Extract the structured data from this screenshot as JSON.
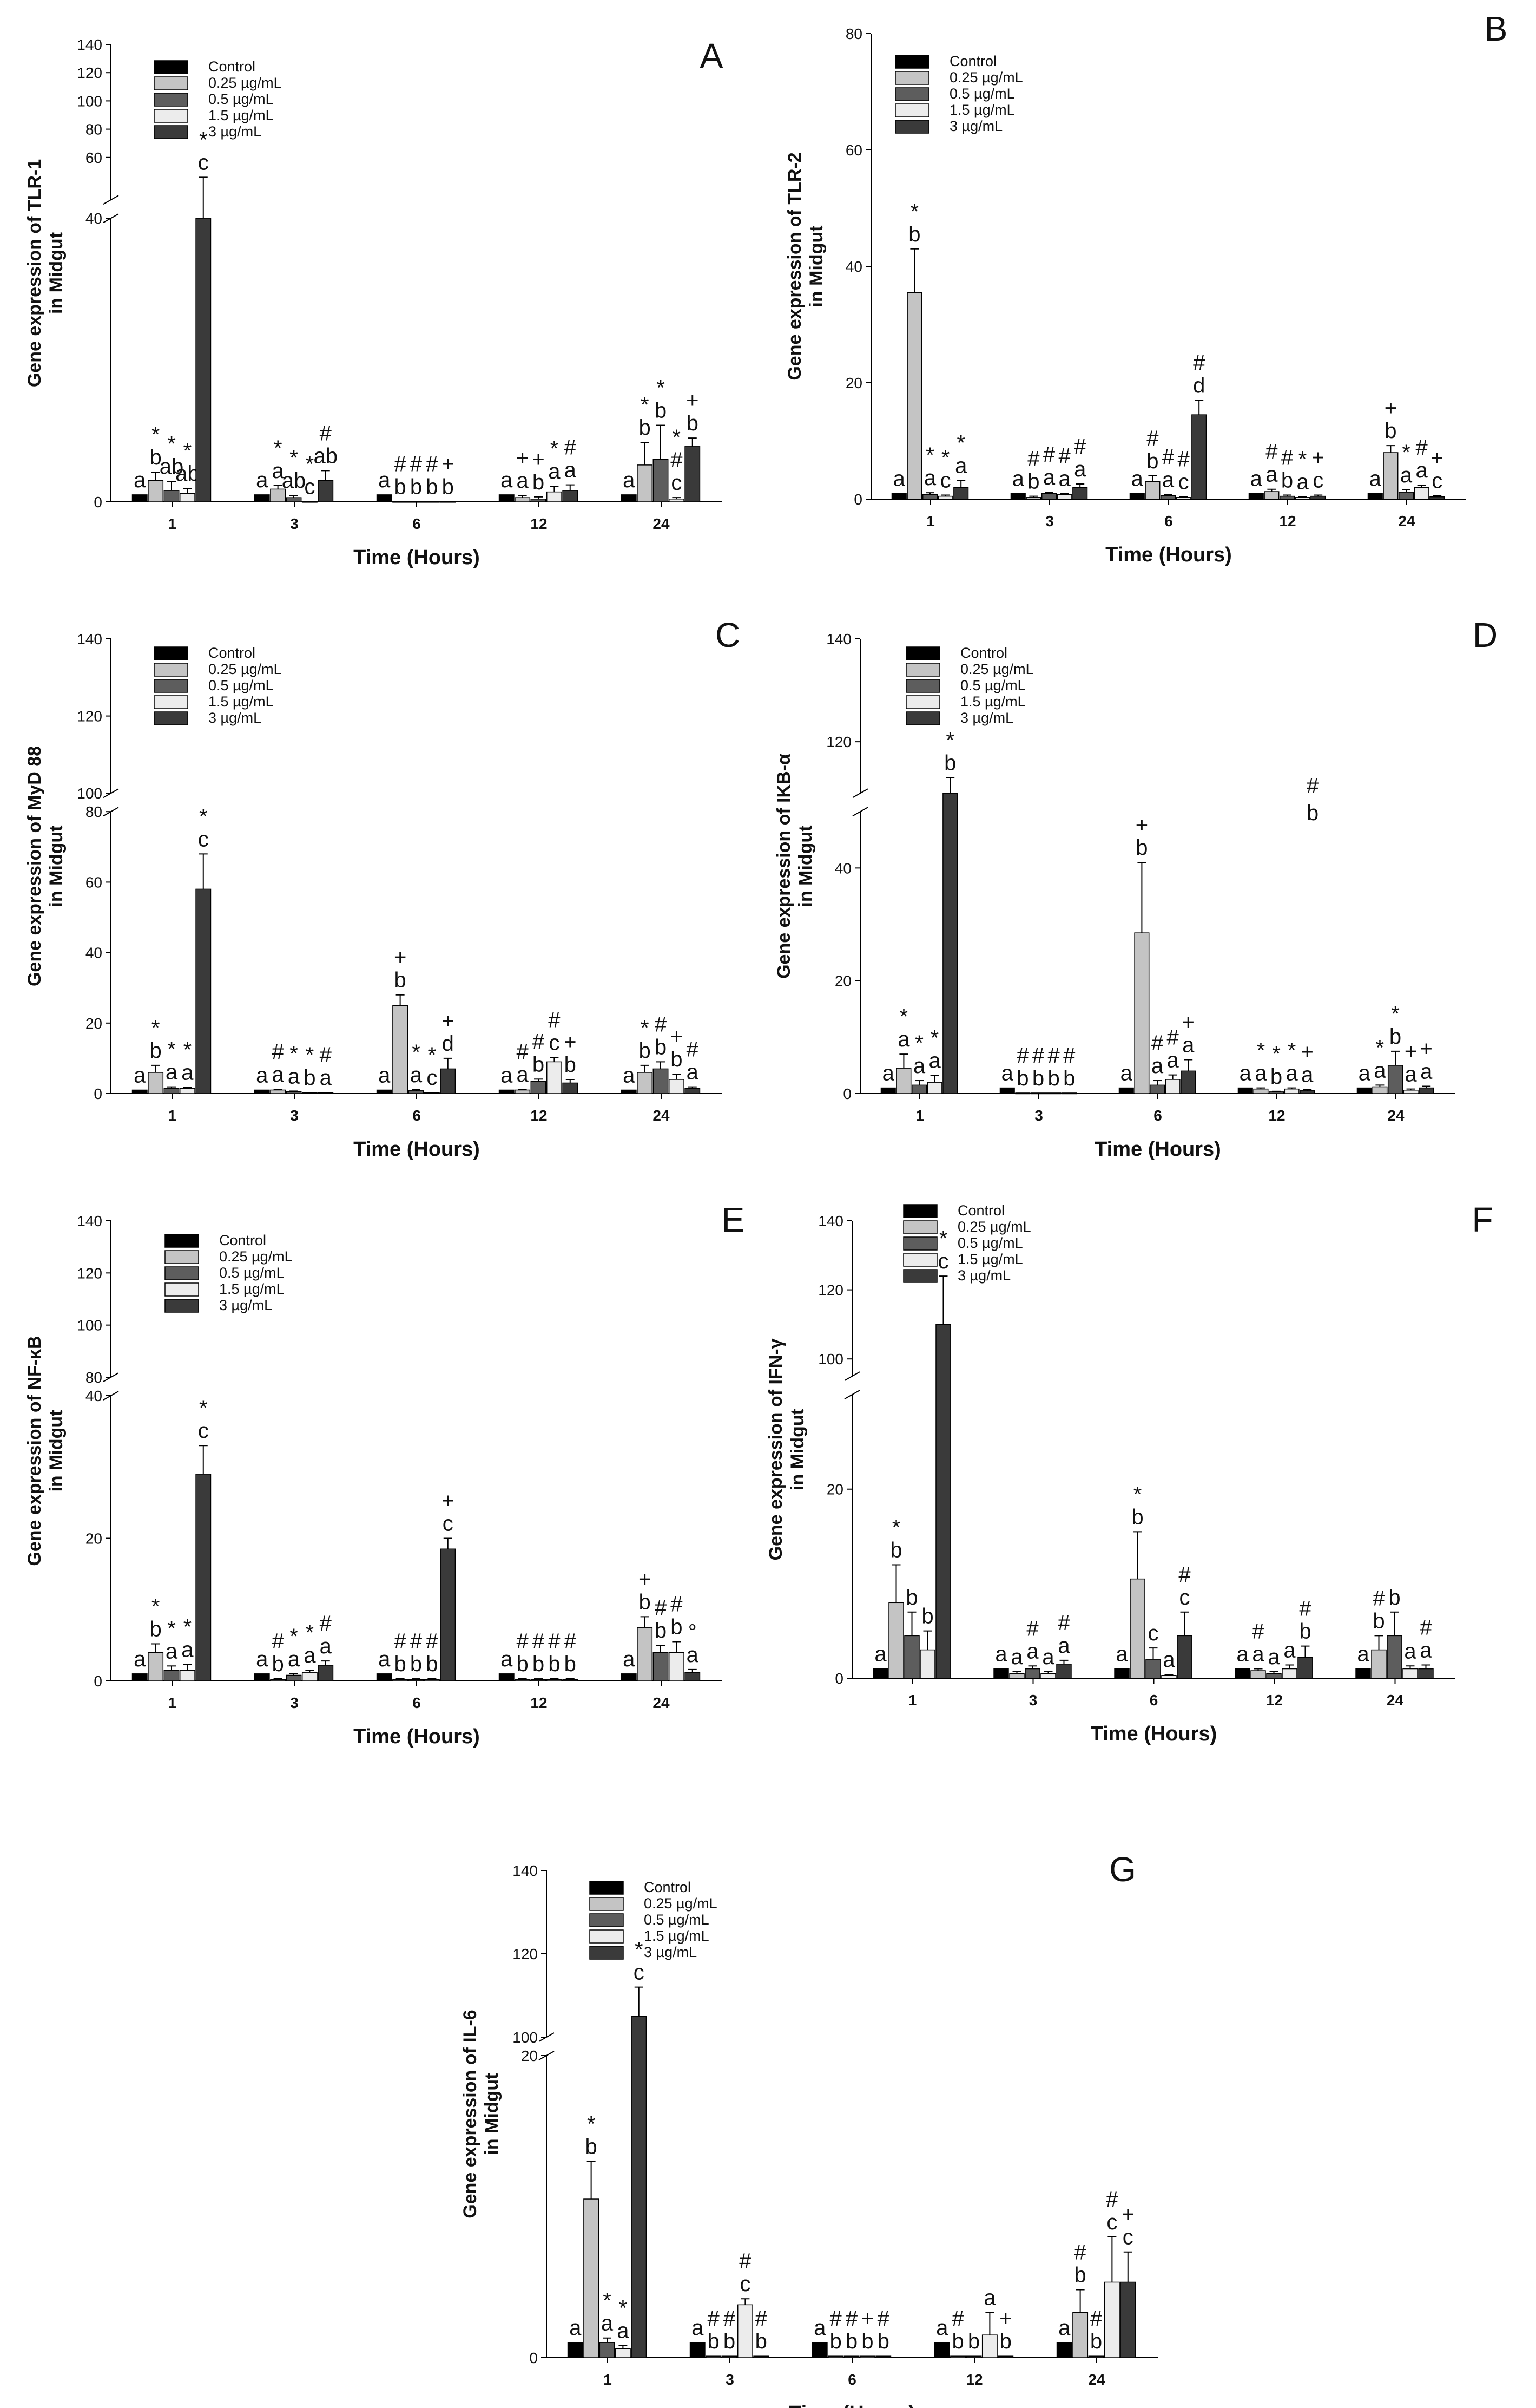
{
  "colors": {
    "Control": "#000000",
    "0.25 µg/mL": "#c4c4c4",
    "0.5 µg/mL": "#5d5d5d",
    "1.5 µg/mL": "#ececec",
    "3 µg/mL": "#3a3a3a"
  },
  "chart_data": [
    {
      "id": "A",
      "type": "bar",
      "panel": "A",
      "ylabel_line1": "Gene expression of TLR-1",
      "ylabel_line2": "in Midgut",
      "xlabel": "Time (Hours)",
      "categories": [
        "1",
        "3",
        "6",
        "12",
        "24"
      ],
      "legend": [
        "Control",
        "0.25 µg/mL",
        "0.5 µg/mL",
        "1.5 µg/mL",
        "3 µg/mL"
      ],
      "break": {
        "lower_max": 40,
        "upper_min": 30,
        "upper_max": 140
      },
      "yticks": [
        0,
        40,
        60,
        80,
        100,
        120,
        140
      ],
      "series": [
        {
          "name": "Control",
          "values": [
            1,
            1,
            1,
            1,
            1
          ],
          "errors": [
            0,
            0,
            0,
            0,
            0
          ]
        },
        {
          "name": "0.25 µg/mL",
          "values": [
            3,
            1.8,
            0.05,
            0.6,
            5.2
          ],
          "errors": [
            1.2,
            0.5,
            0,
            0.3,
            3.2
          ]
        },
        {
          "name": "0.5 µg/mL",
          "values": [
            1.6,
            0.6,
            0.05,
            0.4,
            6
          ],
          "errors": [
            1.3,
            0.3,
            0,
            0.3,
            4.8
          ]
        },
        {
          "name": "1.5 µg/mL",
          "values": [
            1.2,
            0.05,
            0.05,
            1.4,
            0.4
          ],
          "errors": [
            0.7,
            0,
            0,
            0.8,
            0.2
          ]
        },
        {
          "name": "3 µg/mL",
          "values": [
            40,
            3,
            0.05,
            1.6,
            7.8
          ],
          "errors": [
            6,
            1.4,
            0,
            0.8,
            1.2
          ]
        }
      ],
      "annotations": [
        [
          "a",
          "*\nb",
          "*\nab",
          "*\nab",
          "*\nc"
        ],
        [
          "a",
          "*\na",
          "*\nab",
          "*\nc",
          "#\nab"
        ],
        [
          "a",
          "#\nb",
          "#\nb",
          "#\nb",
          "+\nb"
        ],
        [
          "a",
          "+\na",
          "+\nb",
          "*\na",
          "#\na"
        ],
        [
          "a",
          "*\nb",
          "*\nb",
          "*\n#\nc",
          "+\nb"
        ]
      ]
    },
    {
      "id": "B",
      "type": "bar",
      "panel": "B",
      "ylabel_line1": "Gene expression of TLR-2",
      "ylabel_line2": "in Midgut",
      "xlabel": "Time (Hours)",
      "categories": [
        "1",
        "3",
        "6",
        "12",
        "24"
      ],
      "legend": [
        "Control",
        "0.25 µg/mL",
        "0.5 µg/mL",
        "1.5 µg/mL",
        "3 µg/mL"
      ],
      "ylim": [
        0,
        80
      ],
      "yticks": [
        0,
        20,
        40,
        60,
        80
      ],
      "series": [
        {
          "name": "Control",
          "values": [
            1,
            1,
            1,
            1,
            1
          ],
          "errors": [
            0,
            0,
            0,
            0,
            0
          ]
        },
        {
          "name": "0.25 µg/mL",
          "values": [
            35.5,
            0.3,
            3,
            1.3,
            8
          ],
          "errors": [
            7.5,
            0.2,
            1,
            0.4,
            1.2
          ]
        },
        {
          "name": "0.5 µg/mL",
          "values": [
            0.8,
            1,
            0.6,
            0.5,
            1.2
          ],
          "errors": [
            0.3,
            0.2,
            0.2,
            0.2,
            0.4
          ]
        },
        {
          "name": "1.5 µg/mL",
          "values": [
            0.5,
            0.8,
            0.3,
            0.3,
            2
          ],
          "errors": [
            0.2,
            0.2,
            0.1,
            0.1,
            0.4
          ]
        },
        {
          "name": "3 µg/mL",
          "values": [
            2,
            2,
            14.5,
            0.5,
            0.4
          ],
          "errors": [
            1.2,
            0.6,
            2.5,
            0.2,
            0.2
          ]
        }
      ],
      "annotations": [
        [
          "a",
          "*\nb",
          "*\na",
          "*\nc",
          "*\na"
        ],
        [
          "a",
          "#\nb",
          "#\na",
          "#\na",
          "#\na"
        ],
        [
          "a",
          "#\nb",
          "#\na",
          "#\nc",
          "#\nd"
        ],
        [
          "a",
          "#\na",
          "#\nb",
          "*\na",
          "+\nc"
        ],
        [
          "a",
          "+\nb",
          "*\na",
          "#\na",
          "+\nc"
        ]
      ]
    },
    {
      "id": "C",
      "type": "bar",
      "panel": "C",
      "ylabel_line1": "Gene expression of MyD 88",
      "ylabel_line2": "in Midgut",
      "xlabel": "Time (Hours)",
      "categories": [
        "1",
        "3",
        "6",
        "12",
        "24"
      ],
      "legend": [
        "Control",
        "0.25 µg/mL",
        "0.5 µg/mL",
        "1.5 µg/mL",
        "3 µg/mL"
      ],
      "break": {
        "lower_max": 80,
        "upper_min": 100,
        "upper_max": 140
      },
      "yticks": [
        0,
        20,
        40,
        60,
        80,
        100,
        120,
        140
      ],
      "series": [
        {
          "name": "Control",
          "values": [
            1,
            1,
            1,
            1,
            1
          ],
          "errors": [
            0,
            0,
            0,
            0,
            0
          ]
        },
        {
          "name": "0.25 µg/mL",
          "values": [
            6,
            1,
            25,
            1,
            6
          ],
          "errors": [
            2,
            0.2,
            3,
            0.2,
            2
          ]
        },
        {
          "name": "0.5 µg/mL",
          "values": [
            1.5,
            0.5,
            0.8,
            3.5,
            7
          ],
          "errors": [
            0.4,
            0.2,
            0.3,
            0.6,
            2
          ]
        },
        {
          "name": "1.5 µg/mL",
          "values": [
            1.5,
            0.2,
            0.2,
            9,
            4
          ],
          "errors": [
            0.3,
            0.1,
            0.1,
            1.2,
            1.5
          ]
        },
        {
          "name": "3 µg/mL",
          "values": [
            58,
            0.2,
            7,
            3,
            1.5
          ],
          "errors": [
            10,
            0.1,
            3,
            1,
            0.4
          ]
        }
      ],
      "annotations": [
        [
          "a",
          "*\nb",
          "*\na",
          "*\na",
          "*\nc"
        ],
        [
          "a",
          "#\na",
          "*\na",
          "*\nb",
          "#\na"
        ],
        [
          "a",
          "+\nb",
          "*\na",
          "*\nc",
          "+\nd"
        ],
        [
          "a",
          "#\na",
          "#\nb",
          "#\nc",
          "+\nb"
        ],
        [
          "a",
          "*\nb",
          "#\nb",
          "+\nb",
          "#\na"
        ]
      ]
    },
    {
      "id": "D",
      "type": "bar",
      "panel": "D",
      "ylabel_line1": "Gene expression of IKB-α",
      "ylabel_line2": "in Midgut",
      "xlabel": "Time (Hours)",
      "categories": [
        "1",
        "3",
        "6",
        "12",
        "24"
      ],
      "legend": [
        "Control",
        "0.25 µg/mL",
        "0.5 µg/mL",
        "1.5 µg/mL",
        "3 µg/mL"
      ],
      "break": {
        "lower_max": 50,
        "upper_min": 110,
        "upper_max": 140
      },
      "yticks": [
        0,
        20,
        40,
        120,
        140
      ],
      "series": [
        {
          "name": "Control",
          "values": [
            1,
            1,
            1,
            1,
            1
          ],
          "errors": [
            0,
            0,
            0,
            0,
            0
          ]
        },
        {
          "name": "0.25 µg/mL",
          "values": [
            4.5,
            0.1,
            28.5,
            0.8,
            1.2
          ],
          "errors": [
            2.5,
            0,
            12.5,
            0.2,
            0.3
          ]
        },
        {
          "name": "0.5 µg/mL",
          "values": [
            1.5,
            0.1,
            1.5,
            0.3,
            5
          ],
          "errors": [
            0.8,
            0,
            0.8,
            0.1,
            2.5
          ]
        },
        {
          "name": "1.5 µg/mL",
          "values": [
            2,
            0.1,
            2.5,
            0.8,
            0.6
          ],
          "errors": [
            1.2,
            0,
            0.8,
            0.2,
            0.2
          ]
        },
        {
          "name": "3 µg/mL",
          "values": [
            100,
            0.1,
            4,
            0.5,
            1
          ],
          "errors": [
            13,
            0,
            2,
            0.2,
            0.3
          ]
        }
      ],
      "annotations": [
        [
          "a",
          "*\na",
          "*\na",
          "*\na",
          "*\nb"
        ],
        [
          "a",
          "#\nb",
          "#\nb",
          "#\nb",
          "#\nb"
        ],
        [
          "a",
          "+\nb",
          "#\na",
          "#\na",
          "+\na"
        ],
        [
          "a",
          "*\na",
          "*\nb",
          "*\na",
          "+\na"
        ],
        [
          "a",
          "*\na",
          "*\nb",
          "+\na",
          "+\na"
        ]
      ],
      "floating": [
        {
          "category": "12",
          "text": "#\nb"
        }
      ]
    },
    {
      "id": "E",
      "type": "bar",
      "panel": "E",
      "ylabel_line1": "Gene expression of NF-κB",
      "ylabel_line2": "in Midgut",
      "xlabel": "Time (Hours)",
      "categories": [
        "1",
        "3",
        "6",
        "12",
        "24"
      ],
      "legend": [
        "Control",
        "0.25 µg/mL",
        "0.5 µg/mL",
        "1.5 µg/mL",
        "3 µg/mL"
      ],
      "break": {
        "lower_max": 40,
        "upper_min": 80,
        "upper_max": 140
      },
      "yticks": [
        0,
        20,
        40,
        80,
        100,
        120,
        140
      ],
      "series": [
        {
          "name": "Control",
          "values": [
            1,
            1,
            1,
            1,
            1
          ],
          "errors": [
            0,
            0,
            0,
            0,
            0
          ]
        },
        {
          "name": "0.25 µg/mL",
          "values": [
            4,
            0.2,
            0.2,
            0.2,
            7.5
          ],
          "errors": [
            1.2,
            0.1,
            0.1,
            0.1,
            1.5
          ]
        },
        {
          "name": "0.5 µg/mL",
          "values": [
            1.5,
            0.8,
            0.2,
            0.2,
            4
          ],
          "errors": [
            0.6,
            0.2,
            0.1,
            0.1,
            1
          ]
        },
        {
          "name": "1.5 µg/mL",
          "values": [
            1.5,
            1.2,
            0.2,
            0.2,
            4
          ],
          "errors": [
            0.8,
            0.3,
            0.1,
            0.1,
            1.5
          ]
        },
        {
          "name": "3 µg/mL",
          "values": [
            29,
            2.2,
            18.5,
            0.2,
            1.2
          ],
          "errors": [
            4,
            0.6,
            1.5,
            0.1,
            0.4
          ]
        }
      ],
      "annotations": [
        [
          "a",
          "*\nb",
          "*\na",
          "*\na",
          "*\nc"
        ],
        [
          "a",
          "#\nb",
          "*\na",
          "*\na",
          "#\na"
        ],
        [
          "a",
          "#\nb",
          "#\nb",
          "#\nb",
          "+\nc"
        ],
        [
          "a",
          "#\nb",
          "#\nb",
          "#\nb",
          "#\nb"
        ],
        [
          "a",
          "+\nb",
          "#\nb",
          "#\nb",
          "°\na"
        ]
      ]
    },
    {
      "id": "F",
      "type": "bar",
      "panel": "F",
      "ylabel_line1": "Gene expression of IFN-γ",
      "ylabel_line2": "in Midgut",
      "xlabel": "Time (Hours)",
      "categories": [
        "1",
        "3",
        "6",
        "12",
        "24"
      ],
      "legend": [
        "Control",
        "0.25 µg/mL",
        "0.5 µg/mL",
        "1.5 µg/mL",
        "3 µg/mL"
      ],
      "break": {
        "lower_max": 30,
        "upper_min": 95,
        "upper_max": 140
      },
      "yticks": [
        0,
        20,
        100,
        120,
        140
      ],
      "series": [
        {
          "name": "Control",
          "values": [
            1,
            1,
            1,
            1,
            1
          ],
          "errors": [
            0,
            0,
            0,
            0,
            0
          ]
        },
        {
          "name": "0.25 µg/mL",
          "values": [
            8,
            0.5,
            10.5,
            0.8,
            3
          ],
          "errors": [
            4,
            0.2,
            5,
            0.2,
            1.5
          ]
        },
        {
          "name": "0.5 µg/mL",
          "values": [
            4.5,
            1,
            2,
            0.5,
            4.5
          ],
          "errors": [
            2.5,
            0.3,
            1.2,
            0.2,
            2.5
          ]
        },
        {
          "name": "1.5 µg/mL",
          "values": [
            3,
            0.5,
            0.3,
            1,
            1
          ],
          "errors": [
            2,
            0.2,
            0.1,
            0.4,
            0.3
          ]
        },
        {
          "name": "3 µg/mL",
          "values": [
            110,
            1.5,
            4.5,
            2.2,
            1
          ],
          "errors": [
            14,
            0.4,
            2.5,
            1.2,
            0.4
          ]
        }
      ],
      "annotations": [
        [
          "a",
          "*\nb",
          "b",
          "b",
          "*\nc"
        ],
        [
          "a",
          "a",
          "#\na",
          "a",
          "#\na"
        ],
        [
          "a",
          "*\nb",
          "c",
          "a",
          "#\nc"
        ],
        [
          "a",
          "#\na",
          "a",
          "a",
          "#\nb"
        ],
        [
          "a",
          "#\nb",
          "b",
          "a",
          "#\na"
        ]
      ]
    },
    {
      "id": "G",
      "type": "bar",
      "panel": "G",
      "ylabel_line1": "Gene expression of IL-6",
      "ylabel_line2": "in Midgut",
      "xlabel": "Time (Hours)",
      "categories": [
        "1",
        "3",
        "6",
        "12",
        "24"
      ],
      "legend": [
        "Control",
        "0.25 µg/mL",
        "0.5 µg/mL",
        "1.5 µg/mL",
        "3 µg/mL"
      ],
      "break": {
        "lower_max": 20,
        "upper_min": 100,
        "upper_max": 140
      },
      "yticks": [
        0,
        20,
        100,
        120,
        140
      ],
      "series": [
        {
          "name": "Control",
          "values": [
            1,
            1,
            1,
            1,
            1
          ],
          "errors": [
            0,
            0,
            0,
            0,
            0
          ]
        },
        {
          "name": "0.25 µg/mL",
          "values": [
            10.5,
            0.1,
            0.1,
            0.1,
            3
          ],
          "errors": [
            2.5,
            0,
            0,
            0,
            1.5
          ]
        },
        {
          "name": "0.5 µg/mL",
          "values": [
            1,
            0.1,
            0.1,
            0.1,
            0.1
          ],
          "errors": [
            0.3,
            0,
            0,
            0,
            0
          ]
        },
        {
          "name": "1.5 µg/mL",
          "values": [
            0.6,
            3.5,
            0.1,
            1.5,
            5
          ],
          "errors": [
            0.2,
            0.4,
            0,
            1.5,
            3
          ]
        },
        {
          "name": "3 µg/mL",
          "values": [
            105,
            0.1,
            0.1,
            0.1,
            5
          ],
          "errors": [
            7,
            0,
            0,
            0,
            2
          ]
        }
      ],
      "annotations": [
        [
          "a",
          "*\nb",
          "*\na",
          "*\na",
          "*\nc"
        ],
        [
          "a",
          "#\nb",
          "#\nb",
          "#\nc",
          "#\nb"
        ],
        [
          "a",
          "#\nb",
          "#\nb",
          "+\nb",
          "#\nb"
        ],
        [
          "a",
          "#\nb",
          "b",
          "a",
          "+\nb"
        ],
        [
          "a",
          "#\nb",
          "#\nb",
          "#\nc",
          "+\nc"
        ]
      ]
    }
  ]
}
